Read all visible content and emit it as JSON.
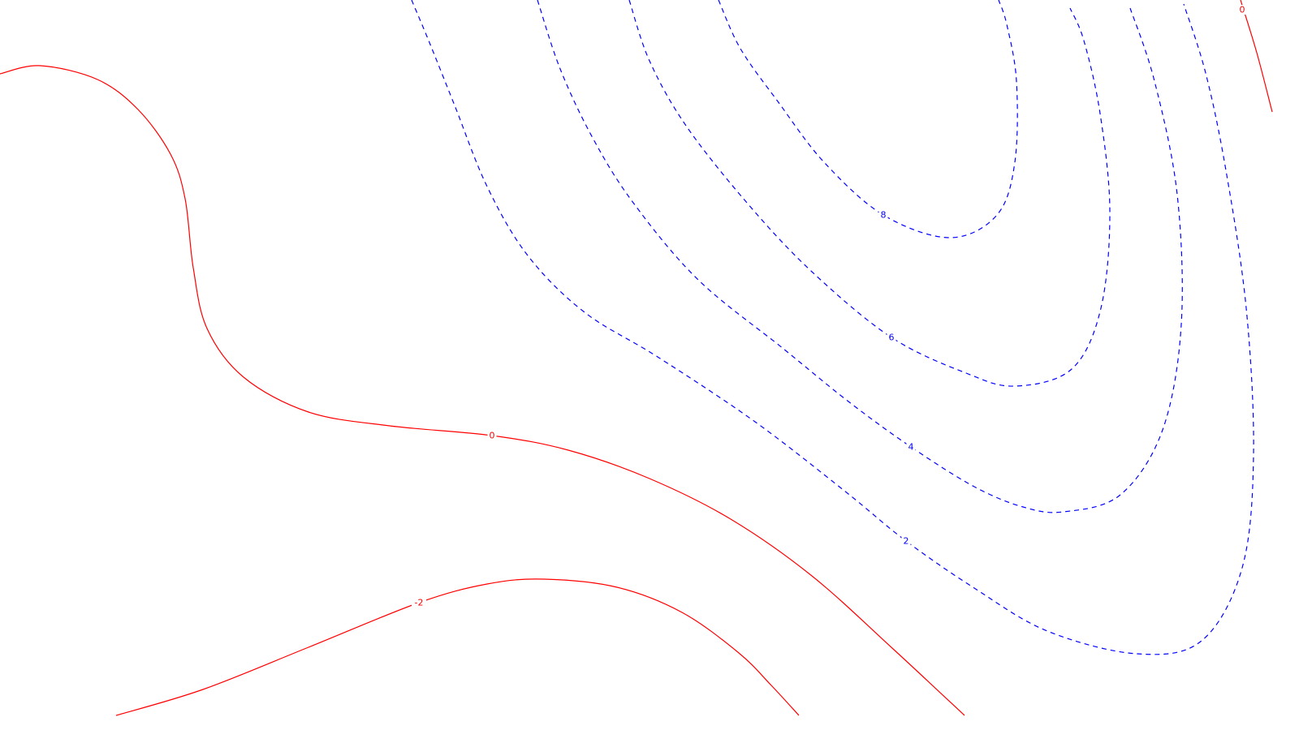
{
  "chart_data": {
    "type": "contour",
    "title": "",
    "xlabel": "",
    "ylabel": "",
    "grid": false,
    "legend": "none",
    "colors": {
      "positive": "#0000ff",
      "nonpositive": "#ff0000"
    },
    "contours": [
      {
        "level": 8,
        "label": "8",
        "style": "dashed",
        "color": "#0000ff",
        "points": [
          [
            885,
            0
          ],
          [
            912,
            60
          ],
          [
            958,
            125
          ],
          [
            1015,
            200
          ],
          [
            1088,
            265
          ],
          [
            1170,
            293
          ],
          [
            1228,
            265
          ],
          [
            1250,
            200
          ],
          [
            1252,
            100
          ],
          [
            1240,
            30
          ],
          [
            1230,
            0
          ]
        ]
      },
      {
        "level": 6,
        "label": "6",
        "style": "dashed",
        "color": "#0000ff",
        "points": [
          [
            775,
            0
          ],
          [
            800,
            75
          ],
          [
            845,
            155
          ],
          [
            920,
            250
          ],
          [
            1000,
            335
          ],
          [
            1098,
            416
          ],
          [
            1190,
            460
          ],
          [
            1250,
            476
          ],
          [
            1320,
            455
          ],
          [
            1356,
            380
          ],
          [
            1367,
            260
          ],
          [
            1355,
            140
          ],
          [
            1335,
            50
          ],
          [
            1318,
            10
          ]
        ]
      },
      {
        "level": 4,
        "label": "4",
        "style": "dashed",
        "color": "#0000ff",
        "points": [
          [
            662,
            0
          ],
          [
            690,
            85
          ],
          [
            730,
            170
          ],
          [
            780,
            250
          ],
          [
            860,
            345
          ],
          [
            965,
            430
          ],
          [
            1045,
            495
          ],
          [
            1122,
            551
          ],
          [
            1200,
            600
          ],
          [
            1260,
            625
          ],
          [
            1310,
            631
          ],
          [
            1380,
            610
          ],
          [
            1432,
            530
          ],
          [
            1455,
            400
          ],
          [
            1450,
            240
          ],
          [
            1422,
            100
          ],
          [
            1392,
            10
          ]
        ]
      },
      {
        "level": 2,
        "label": "2",
        "style": "dashed",
        "color": "#0000ff",
        "points": [
          [
            507,
            0
          ],
          [
            530,
            55
          ],
          [
            560,
            130
          ],
          [
            600,
            230
          ],
          [
            650,
            315
          ],
          [
            720,
            385
          ],
          [
            810,
            440
          ],
          [
            930,
            520
          ],
          [
            1040,
            605
          ],
          [
            1116,
            667
          ],
          [
            1200,
            725
          ],
          [
            1290,
            778
          ],
          [
            1400,
            806
          ],
          [
            1480,
            790
          ],
          [
            1530,
            700
          ],
          [
            1544,
            560
          ],
          [
            1535,
            380
          ],
          [
            1510,
            210
          ],
          [
            1485,
            90
          ],
          [
            1458,
            5
          ]
        ]
      },
      {
        "level": 0,
        "label": "0",
        "style": "solid",
        "color": "#ff0000",
        "points": [
          [
            0,
            91
          ],
          [
            50,
            81
          ],
          [
            120,
            98
          ],
          [
            170,
            135
          ],
          [
            210,
            190
          ],
          [
            228,
            245
          ],
          [
            238,
            330
          ],
          [
            255,
            405
          ],
          [
            300,
            465
          ],
          [
            380,
            508
          ],
          [
            480,
            525
          ],
          [
            606,
            537
          ],
          [
            700,
            555
          ],
          [
            800,
            590
          ],
          [
            900,
            640
          ],
          [
            1000,
            710
          ],
          [
            1100,
            800
          ],
          [
            1188,
            882
          ]
        ]
      },
      {
        "level": 0,
        "label": "0",
        "style": "solid",
        "color": "#ff0000",
        "points": [
          [
            1528,
            0
          ],
          [
            1548,
            65
          ],
          [
            1567,
            138
          ]
        ]
      },
      {
        "level": -2,
        "label": "-2",
        "style": "solid",
        "color": "#ff0000",
        "points": [
          [
            143,
            882
          ],
          [
            250,
            850
          ],
          [
            380,
            798
          ],
          [
            516,
            743
          ],
          [
            600,
            720
          ],
          [
            670,
            714
          ],
          [
            760,
            724
          ],
          [
            840,
            755
          ],
          [
            910,
            805
          ],
          [
            950,
            845
          ],
          [
            984,
            882
          ]
        ]
      }
    ],
    "labels": [
      {
        "text": "8",
        "color": "#0000ff",
        "at": [
          1088,
          265
        ]
      },
      {
        "text": "6",
        "color": "#0000ff",
        "at": [
          1098,
          416
        ]
      },
      {
        "text": "4",
        "color": "#0000ff",
        "at": [
          1122,
          551
        ]
      },
      {
        "text": "2",
        "color": "#0000ff",
        "at": [
          1116,
          667
        ]
      },
      {
        "text": "0",
        "color": "#ff0000",
        "at": [
          606,
          537
        ]
      },
      {
        "text": "0",
        "color": "#ff0000",
        "at": [
          1530,
          12
        ]
      },
      {
        "text": "-2",
        "color": "#ff0000",
        "at": [
          516,
          743
        ]
      }
    ]
  }
}
